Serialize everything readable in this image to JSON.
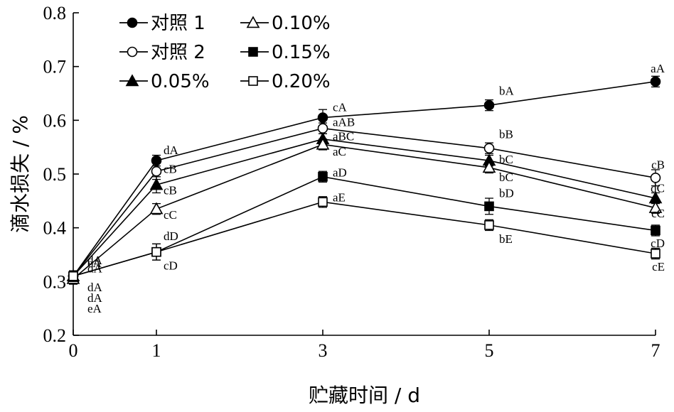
{
  "chart_data": {
    "type": "line",
    "xlabel": "贮藏时间 / d",
    "ylabel": "滴水损失 / %",
    "x": [
      0,
      1,
      3,
      5,
      7
    ],
    "xticks": [
      "0",
      "1",
      "3",
      "5",
      "7"
    ],
    "xlim": [
      0,
      7
    ],
    "ylim": [
      0.2,
      0.8
    ],
    "yticks": [
      "0.2",
      "0.3",
      "0.4",
      "0.5",
      "0.6",
      "0.7",
      "0.8"
    ],
    "grid": false,
    "legend_position": "top-left",
    "series": [
      {
        "name": "对照 1",
        "marker": "circle-filled",
        "values": [
          0.31,
          0.525,
          0.605,
          0.628,
          0.672
        ],
        "err": [
          0.01,
          0.01,
          0.015,
          0.01,
          0.01
        ]
      },
      {
        "name": "对照 2",
        "marker": "circle-open",
        "values": [
          0.31,
          0.505,
          0.585,
          0.548,
          0.493
        ],
        "err": [
          0.01,
          0.015,
          0.01,
          0.01,
          0.015
        ]
      },
      {
        "name": "0.05%",
        "marker": "triangle-filled",
        "values": [
          0.31,
          0.48,
          0.565,
          0.525,
          0.455
        ],
        "err": [
          0.01,
          0.015,
          0.01,
          0.01,
          0.01
        ]
      },
      {
        "name": "0.10%",
        "marker": "triangle-open",
        "values": [
          0.305,
          0.435,
          0.555,
          0.512,
          0.437
        ],
        "err": [
          0.01,
          0.01,
          0.01,
          0.01,
          0.01
        ]
      },
      {
        "name": "0.15%",
        "marker": "square-filled",
        "values": [
          0.31,
          0.355,
          0.495,
          0.44,
          0.395
        ],
        "err": [
          0.01,
          0.015,
          0.01,
          0.015,
          0.01
        ]
      },
      {
        "name": "0.20%",
        "marker": "square-open",
        "values": [
          0.31,
          0.355,
          0.448,
          0.405,
          0.352
        ],
        "err": [
          0.01,
          0.015,
          0.01,
          0.01,
          0.01
        ]
      }
    ],
    "annotations": [
      {
        "text": "dA",
        "x": 0,
        "y": 0.34
      },
      {
        "text": "dA",
        "x": 0,
        "y": 0.325
      },
      {
        "text": "eA",
        "x": 0,
        "y": 0.335
      },
      {
        "text": "dA",
        "x": 0,
        "y": 0.29
      },
      {
        "text": "dA",
        "x": 0,
        "y": 0.27
      },
      {
        "text": "eA",
        "x": 0,
        "y": 0.25
      },
      {
        "text": "dA",
        "x": 1,
        "y": 0.545
      },
      {
        "text": "cB",
        "x": 1,
        "y": 0.51
      },
      {
        "text": "cB",
        "x": 1,
        "y": 0.47
      },
      {
        "text": "cC",
        "x": 1,
        "y": 0.425
      },
      {
        "text": "dD",
        "x": 1,
        "y": 0.385
      },
      {
        "text": "cD",
        "x": 1,
        "y": 0.33
      },
      {
        "text": "cA",
        "x": 3,
        "y": 0.625
      },
      {
        "text": "aAB",
        "x": 3,
        "y": 0.597
      },
      {
        "text": "aBC",
        "x": 3,
        "y": 0.571
      },
      {
        "text": "aC",
        "x": 3,
        "y": 0.542
      },
      {
        "text": "aD",
        "x": 3,
        "y": 0.503
      },
      {
        "text": "aE",
        "x": 3,
        "y": 0.457
      },
      {
        "text": "bA",
        "x": 5,
        "y": 0.655
      },
      {
        "text": "bB",
        "x": 5,
        "y": 0.575
      },
      {
        "text": "bC",
        "x": 5,
        "y": 0.528
      },
      {
        "text": "bC",
        "x": 5,
        "y": 0.495
      },
      {
        "text": "bD",
        "x": 5,
        "y": 0.465
      },
      {
        "text": "bE",
        "x": 5,
        "y": 0.38
      },
      {
        "text": "aA",
        "x": 7,
        "y": 0.697
      },
      {
        "text": "cB",
        "x": 7,
        "y": 0.518
      },
      {
        "text": "dC",
        "x": 7,
        "y": 0.474
      },
      {
        "text": "cC",
        "x": 7,
        "y": 0.427
      },
      {
        "text": "cD",
        "x": 7,
        "y": 0.372
      },
      {
        "text": "cE",
        "x": 7,
        "y": 0.328
      }
    ]
  }
}
